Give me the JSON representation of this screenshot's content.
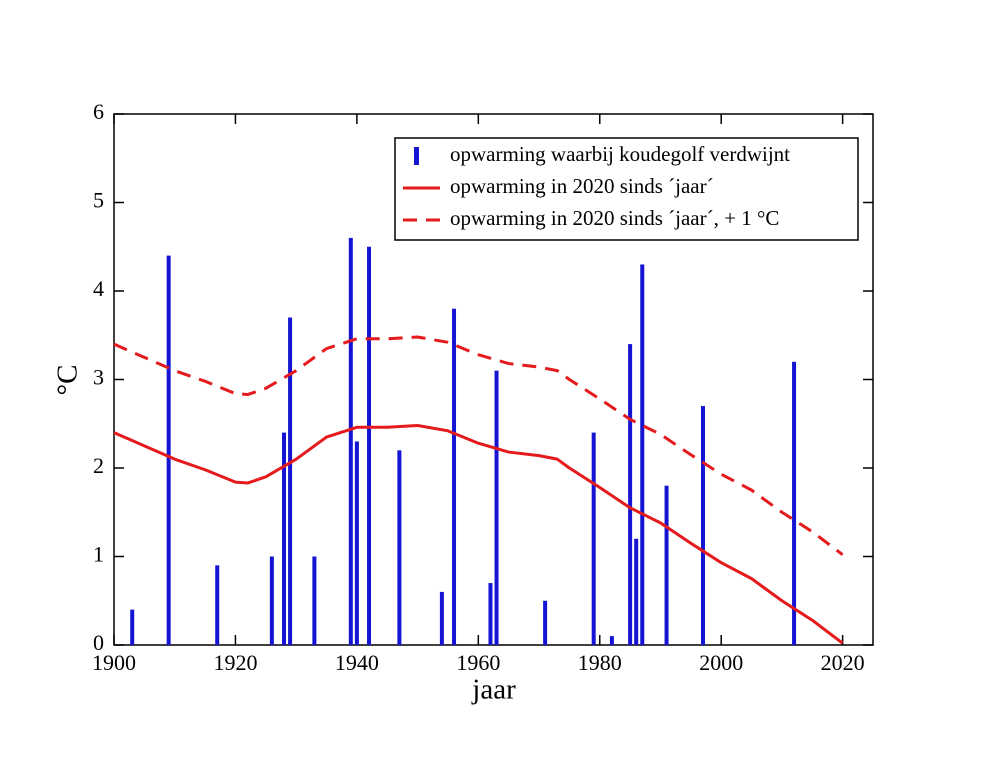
{
  "chart_data": {
    "type": "combo",
    "xlabel": "jaar",
    "ylabel": "°C",
    "xlim": [
      1900,
      2025
    ],
    "ylim": [
      0,
      6
    ],
    "xticks": [
      1900,
      1920,
      1940,
      1960,
      1980,
      2000,
      2020
    ],
    "yticks": [
      0,
      1,
      2,
      3,
      4,
      5,
      6
    ],
    "legend": "top-right",
    "series": [
      {
        "name": "opwarming waarbij koudegolf verdwijnt",
        "type": "bar",
        "color": "#1414d2",
        "x": [
          1903,
          1909,
          1917,
          1926,
          1928,
          1929,
          1933,
          1939,
          1940,
          1942,
          1947,
          1954,
          1956,
          1962,
          1963,
          1971,
          1979,
          1982,
          1985,
          1986,
          1987,
          1991,
          1997,
          2012
        ],
        "values": [
          0.4,
          4.4,
          0.9,
          1.0,
          2.4,
          3.7,
          1.0,
          4.6,
          2.3,
          4.5,
          2.2,
          0.6,
          3.8,
          0.7,
          3.1,
          0.5,
          2.4,
          0.1,
          3.4,
          1.2,
          4.3,
          1.8,
          2.7,
          3.2
        ]
      },
      {
        "name": "opwarming in 2020 sinds ´jaar´",
        "type": "line",
        "dash": false,
        "color": "#e41a1c",
        "x": [
          1900,
          1905,
          1910,
          1915,
          1920,
          1922,
          1925,
          1930,
          1935,
          1940,
          1945,
          1950,
          1955,
          1960,
          1965,
          1970,
          1973,
          1975,
          1980,
          1985,
          1990,
          1995,
          2000,
          2005,
          2010,
          2015,
          2020
        ],
        "values": [
          2.4,
          2.25,
          2.1,
          1.98,
          1.84,
          1.83,
          1.9,
          2.1,
          2.35,
          2.46,
          2.46,
          2.48,
          2.42,
          2.28,
          2.18,
          2.14,
          2.1,
          2.0,
          1.78,
          1.55,
          1.38,
          1.15,
          0.93,
          0.75,
          0.5,
          0.28,
          0.02
        ]
      },
      {
        "name": "opwarming in 2020 sinds ´jaar´, + 1 °C",
        "type": "line",
        "dash": true,
        "color": "#e41a1c",
        "x": [
          1900,
          1905,
          1910,
          1915,
          1920,
          1922,
          1925,
          1930,
          1935,
          1940,
          1945,
          1950,
          1955,
          1960,
          1965,
          1970,
          1973,
          1975,
          1980,
          1985,
          1990,
          1995,
          2000,
          2005,
          2010,
          2015,
          2020
        ],
        "values": [
          3.4,
          3.25,
          3.1,
          2.98,
          2.84,
          2.83,
          2.9,
          3.1,
          3.35,
          3.46,
          3.46,
          3.48,
          3.42,
          3.28,
          3.18,
          3.14,
          3.1,
          3.0,
          2.78,
          2.55,
          2.38,
          2.15,
          1.93,
          1.75,
          1.5,
          1.28,
          1.02
        ]
      }
    ]
  }
}
